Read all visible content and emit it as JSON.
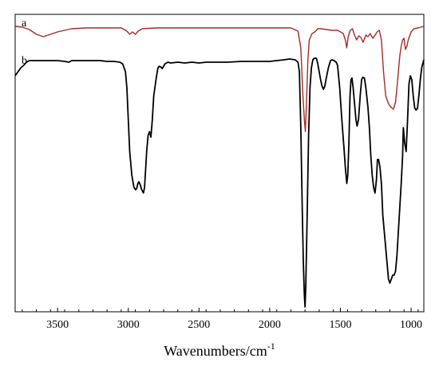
{
  "chart_data": {
    "type": "line",
    "title": "",
    "xlabel": "Wavenumbers/cm",
    "xlabel_superscript": "-1",
    "ylabel": "",
    "xlim": [
      3800,
      910
    ],
    "x_reversed": true,
    "x_ticks": [
      3500,
      3000,
      2500,
      2000,
      1500,
      1000
    ],
    "y_axis_ticks_visible": false,
    "grid": false,
    "legend": "none",
    "series": [
      {
        "name": "a",
        "color": "#a52a2a",
        "points": [
          [
            3800,
            33
          ],
          [
            3750,
            34
          ],
          [
            3700,
            37
          ],
          [
            3650,
            43
          ],
          [
            3600,
            46
          ],
          [
            3550,
            43
          ],
          [
            3500,
            40
          ],
          [
            3400,
            36
          ],
          [
            3300,
            35
          ],
          [
            3150,
            35
          ],
          [
            3050,
            35
          ],
          [
            3010,
            39
          ],
          [
            2990,
            43
          ],
          [
            2970,
            40
          ],
          [
            2950,
            43
          ],
          [
            2930,
            39
          ],
          [
            2900,
            36
          ],
          [
            2800,
            35
          ],
          [
            2600,
            35
          ],
          [
            2400,
            35
          ],
          [
            2200,
            35
          ],
          [
            2000,
            35
          ],
          [
            1850,
            35
          ],
          [
            1800,
            39
          ],
          [
            1780,
            60
          ],
          [
            1765,
            120
          ],
          [
            1755,
            150
          ],
          [
            1748,
            165
          ],
          [
            1740,
            130
          ],
          [
            1730,
            75
          ],
          [
            1720,
            50
          ],
          [
            1700,
            42
          ],
          [
            1680,
            40
          ],
          [
            1660,
            36
          ],
          [
            1640,
            36
          ],
          [
            1600,
            37
          ],
          [
            1560,
            38
          ],
          [
            1520,
            38
          ],
          [
            1480,
            42
          ],
          [
            1465,
            50
          ],
          [
            1455,
            60
          ],
          [
            1445,
            46
          ],
          [
            1430,
            38
          ],
          [
            1415,
            36
          ],
          [
            1400,
            44
          ],
          [
            1385,
            50
          ],
          [
            1370,
            45
          ],
          [
            1355,
            47
          ],
          [
            1340,
            53
          ],
          [
            1320,
            44
          ],
          [
            1305,
            46
          ],
          [
            1290,
            42
          ],
          [
            1270,
            48
          ],
          [
            1255,
            44
          ],
          [
            1240,
            40
          ],
          [
            1225,
            38
          ],
          [
            1210,
            50
          ],
          [
            1195,
            90
          ],
          [
            1180,
            120
          ],
          [
            1160,
            130
          ],
          [
            1140,
            135
          ],
          [
            1125,
            137
          ],
          [
            1110,
            128
          ],
          [
            1095,
            100
          ],
          [
            1080,
            70
          ],
          [
            1070,
            58
          ],
          [
            1060,
            50
          ],
          [
            1050,
            48
          ],
          [
            1040,
            62
          ],
          [
            1030,
            58
          ],
          [
            1020,
            50
          ],
          [
            1000,
            40
          ],
          [
            980,
            36
          ],
          [
            950,
            35
          ],
          [
            930,
            34
          ],
          [
            910,
            33
          ]
        ]
      },
      {
        "name": "b",
        "color": "#000000",
        "points": [
          [
            3800,
            95
          ],
          [
            3780,
            90
          ],
          [
            3760,
            85
          ],
          [
            3740,
            82
          ],
          [
            3720,
            78
          ],
          [
            3700,
            76
          ],
          [
            3650,
            76
          ],
          [
            3600,
            76
          ],
          [
            3550,
            76
          ],
          [
            3500,
            76
          ],
          [
            3450,
            77
          ],
          [
            3420,
            78
          ],
          [
            3400,
            76
          ],
          [
            3350,
            76
          ],
          [
            3300,
            76
          ],
          [
            3250,
            76
          ],
          [
            3200,
            76
          ],
          [
            3150,
            77
          ],
          [
            3100,
            77
          ],
          [
            3060,
            78
          ],
          [
            3040,
            80
          ],
          [
            3020,
            90
          ],
          [
            3010,
            110
          ],
          [
            3000,
            150
          ],
          [
            2990,
            190
          ],
          [
            2975,
            220
          ],
          [
            2960,
            235
          ],
          [
            2948,
            238
          ],
          [
            2940,
            236
          ],
          [
            2932,
            230
          ],
          [
            2925,
            228
          ],
          [
            2915,
            232
          ],
          [
            2905,
            238
          ],
          [
            2893,
            242
          ],
          [
            2885,
            235
          ],
          [
            2870,
            190
          ],
          [
            2860,
            170
          ],
          [
            2850,
            165
          ],
          [
            2840,
            172
          ],
          [
            2830,
            150
          ],
          [
            2820,
            120
          ],
          [
            2800,
            95
          ],
          [
            2790,
            85
          ],
          [
            2780,
            83
          ],
          [
            2770,
            84
          ],
          [
            2760,
            86
          ],
          [
            2740,
            80
          ],
          [
            2720,
            78
          ],
          [
            2700,
            79
          ],
          [
            2650,
            78
          ],
          [
            2600,
            79
          ],
          [
            2550,
            78
          ],
          [
            2500,
            79
          ],
          [
            2450,
            78
          ],
          [
            2400,
            78
          ],
          [
            2300,
            78
          ],
          [
            2200,
            77
          ],
          [
            2100,
            77
          ],
          [
            2000,
            77
          ],
          [
            1950,
            76
          ],
          [
            1900,
            75
          ],
          [
            1860,
            74
          ],
          [
            1820,
            75
          ],
          [
            1800,
            78
          ],
          [
            1790,
            90
          ],
          [
            1780,
            160
          ],
          [
            1770,
            260
          ],
          [
            1762,
            330
          ],
          [
            1755,
            370
          ],
          [
            1750,
            385
          ],
          [
            1745,
            360
          ],
          [
            1735,
            270
          ],
          [
            1725,
            170
          ],
          [
            1715,
            110
          ],
          [
            1705,
            85
          ],
          [
            1695,
            75
          ],
          [
            1685,
            73
          ],
          [
            1670,
            73
          ],
          [
            1660,
            80
          ],
          [
            1650,
            90
          ],
          [
            1640,
            100
          ],
          [
            1630,
            108
          ],
          [
            1620,
            112
          ],
          [
            1610,
            108
          ],
          [
            1600,
            98
          ],
          [
            1585,
            85
          ],
          [
            1570,
            76
          ],
          [
            1560,
            75
          ],
          [
            1545,
            76
          ],
          [
            1530,
            78
          ],
          [
            1520,
            82
          ],
          [
            1505,
            110
          ],
          [
            1490,
            150
          ],
          [
            1475,
            185
          ],
          [
            1465,
            210
          ],
          [
            1455,
            230
          ],
          [
            1448,
            220
          ],
          [
            1440,
            180
          ],
          [
            1432,
            120
          ],
          [
            1425,
            100
          ],
          [
            1418,
            98
          ],
          [
            1410,
            110
          ],
          [
            1400,
            130
          ],
          [
            1390,
            150
          ],
          [
            1382,
            158
          ],
          [
            1372,
            150
          ],
          [
            1360,
            120
          ],
          [
            1350,
            100
          ],
          [
            1342,
            97
          ],
          [
            1330,
            98
          ],
          [
            1320,
            110
          ],
          [
            1305,
            135
          ],
          [
            1295,
            160
          ],
          [
            1285,
            195
          ],
          [
            1275,
            220
          ],
          [
            1265,
            235
          ],
          [
            1255,
            242
          ],
          [
            1245,
            225
          ],
          [
            1238,
            200
          ],
          [
            1230,
            200
          ],
          [
            1220,
            210
          ],
          [
            1210,
            230
          ],
          [
            1200,
            270
          ],
          [
            1190,
            290
          ],
          [
            1180,
            310
          ],
          [
            1170,
            330
          ],
          [
            1160,
            350
          ],
          [
            1150,
            355
          ],
          [
            1140,
            350
          ],
          [
            1130,
            345
          ],
          [
            1120,
            345
          ],
          [
            1110,
            340
          ],
          [
            1100,
            320
          ],
          [
            1090,
            290
          ],
          [
            1080,
            260
          ],
          [
            1070,
            230
          ],
          [
            1060,
            195
          ],
          [
            1055,
            160
          ],
          [
            1050,
            170
          ],
          [
            1045,
            180
          ],
          [
            1035,
            190
          ],
          [
            1025,
            150
          ],
          [
            1015,
            105
          ],
          [
            1005,
            95
          ],
          [
            995,
            100
          ],
          [
            985,
            120
          ],
          [
            975,
            135
          ],
          [
            965,
            138
          ],
          [
            955,
            136
          ],
          [
            945,
            120
          ],
          [
            935,
            100
          ],
          [
            925,
            85
          ],
          [
            910,
            75
          ]
        ]
      }
    ]
  }
}
